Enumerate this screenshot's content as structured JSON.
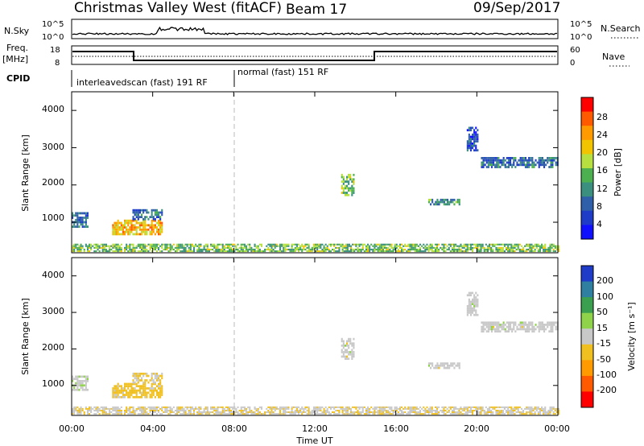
{
  "header": {
    "station": "Christmas Valley West (fitACF)",
    "beam": "Beam 17",
    "date": "09/Sep/2017"
  },
  "nsky_panel": {
    "left_label": "N.Sky",
    "right_label": "N.Search",
    "left_ticks": [
      "10^5",
      "10^0"
    ],
    "right_ticks": [
      "10^5",
      "10^0"
    ]
  },
  "freq_panel": {
    "left_label_1": "Freq.",
    "left_label_2": "[MHz]",
    "right_label": "Nave",
    "left_ticks": [
      "18",
      "8"
    ],
    "right_ticks": [
      "60",
      "0"
    ]
  },
  "cpid": {
    "label": "CPID",
    "mode1": "interleavedscan (fast) 191 RF",
    "mode2": "normal (fast) 151 RF"
  },
  "power_panel": {
    "ylabel": "Slant Range [km]",
    "yticks": [
      "4000",
      "3000",
      "2000",
      "1000"
    ],
    "cbar_label": "Power [dB]",
    "cbar_ticks": [
      "28",
      "24",
      "20",
      "16",
      "12",
      "8",
      "4"
    ],
    "cbar_colors": [
      "#ff0000",
      "#ff5a00",
      "#ff9a00",
      "#f2c400",
      "#b6e040",
      "#4caf50",
      "#3a8f7f",
      "#2e5fa8",
      "#1e3cc8",
      "#1010ff"
    ]
  },
  "velocity_panel": {
    "ylabel": "Slant Range [km]",
    "yticks": [
      "4000",
      "3000",
      "2000",
      "1000"
    ],
    "cbar_label": "Velocity [m s⁻¹]",
    "cbar_ticks": [
      "200",
      "100",
      "50",
      "15",
      "-15",
      "-50",
      "-100",
      "-200"
    ],
    "cbar_colors": [
      "#1e3cc8",
      "#2e7fa0",
      "#3a9f4f",
      "#8fd34a",
      "#c8c8c8",
      "#f0c020",
      "#ff9a00",
      "#ff5a00",
      "#ff0000"
    ]
  },
  "time_axis": {
    "label": "Time UT",
    "ticks": [
      "00:00",
      "04:00",
      "08:00",
      "12:00",
      "16:00",
      "20:00",
      "00:00"
    ]
  },
  "chart_data": {
    "type": "heatmap",
    "title": "Christmas Valley West (fitACF)",
    "subtitle": "Beam 17",
    "xlabel": "Time UT",
    "ylabel": "Slant Range [km]",
    "xlim": [
      0,
      24
    ],
    "ylim": [
      180,
      4500
    ],
    "xticks": [
      "00:00",
      "04:00",
      "08:00",
      "12:00",
      "16:00",
      "20:00",
      "00:00"
    ],
    "yticks": [
      1000,
      2000,
      3000,
      4000
    ],
    "cpid_change_hour": 8.0,
    "freq_mhz": [
      {
        "from": 0.0,
        "to": 2.75,
        "value": 14.5
      },
      {
        "from": 2.75,
        "to": 14.9,
        "value": 10.5
      },
      {
        "from": 14.9,
        "to": 24.0,
        "value": 14.5
      }
    ],
    "echo_regions": [
      {
        "from": 0.0,
        "to": 24.0,
        "range_min": 200,
        "range_max": 420,
        "power_db": 14,
        "velocity": -20
      },
      {
        "from": 2.0,
        "to": 4.5,
        "range_min": 650,
        "range_max": 1050,
        "power_db": 20,
        "velocity": -50
      },
      {
        "from": 3.0,
        "to": 4.5,
        "range_min": 1050,
        "range_max": 1300,
        "power_db": 8,
        "velocity": -30
      },
      {
        "from": 0.0,
        "to": 0.8,
        "range_min": 850,
        "range_max": 1250,
        "power_db": 8,
        "velocity": 15
      },
      {
        "from": 13.3,
        "to": 13.9,
        "range_min": 1700,
        "range_max": 2300,
        "power_db": 14,
        "velocity": 0
      },
      {
        "from": 17.6,
        "to": 19.1,
        "range_min": 1450,
        "range_max": 1600,
        "power_db": 12,
        "velocity": 0
      },
      {
        "from": 20.2,
        "to": 24.0,
        "range_min": 2450,
        "range_max": 2700,
        "power_db": 8,
        "velocity": 0
      },
      {
        "from": 19.5,
        "to": 20.0,
        "range_min": 2900,
        "range_max": 3550,
        "power_db": 6,
        "velocity": 0
      }
    ],
    "power_colorbar": {
      "min": 0,
      "max": 30,
      "label": "Power [dB]"
    },
    "velocity_colorbar": {
      "min": -250,
      "max": 250,
      "label": "Velocity [m s⁻¹]"
    }
  }
}
